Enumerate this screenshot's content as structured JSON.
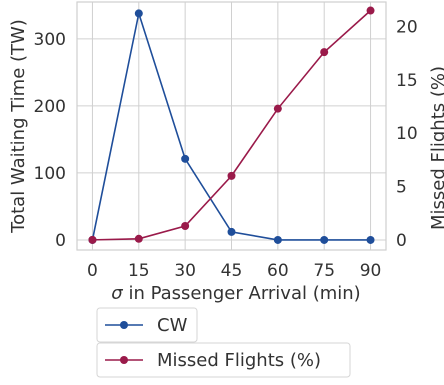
{
  "chart_data": {
    "type": "line",
    "x": [
      0,
      15,
      30,
      45,
      60,
      75,
      90
    ],
    "xlabel_prefix": "σ",
    "xlabel_rest": " in Passenger Arrival (min)",
    "ylabel_left": "Total Waiting Time (TW)",
    "ylabel_right": "Missed Flights (%)",
    "x_ticks": [
      "0",
      "15",
      "30",
      "45",
      "60",
      "75",
      "90"
    ],
    "y_left_ticks": [
      "0",
      "100",
      "200",
      "300"
    ],
    "y_right_ticks": [
      "0",
      "5",
      "10",
      "15",
      "20"
    ],
    "xlim": [
      -5,
      95
    ],
    "ylim_left": [
      -15,
      355
    ],
    "ylim_right": [
      -0.95,
      22.3
    ],
    "grid": true,
    "legend_placement": "below",
    "series": [
      {
        "name": "CW",
        "axis": "left",
        "color": "#1f4e9a",
        "values": [
          0,
          338,
          121,
          12,
          0,
          0,
          0
        ]
      },
      {
        "name": "Missed Flights (%)",
        "axis": "right",
        "color": "#9a1a4a",
        "values": [
          0,
          0.1,
          1.3,
          6.0,
          12.3,
          17.6,
          21.5
        ]
      }
    ]
  }
}
